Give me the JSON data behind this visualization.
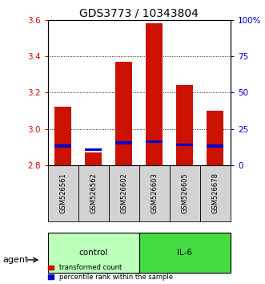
{
  "title": "GDS3773 / 10343804",
  "samples": [
    "GSM526561",
    "GSM526562",
    "GSM526602",
    "GSM526603",
    "GSM526605",
    "GSM526678"
  ],
  "red_tops": [
    3.12,
    2.87,
    3.37,
    3.58,
    3.24,
    3.1
  ],
  "blue_tops": [
    2.905,
    2.885,
    2.923,
    2.93,
    2.912,
    2.905
  ],
  "ymin": 2.8,
  "ymax": 3.6,
  "yticks": [
    2.8,
    3.0,
    3.2,
    3.4,
    3.6
  ],
  "right_yticks": [
    0,
    25,
    50,
    75,
    100
  ],
  "right_ylabels": [
    "0",
    "25",
    "50",
    "75",
    "100%"
  ],
  "bar_width": 0.55,
  "red_color": "#cc1100",
  "blue_color": "#0000cc",
  "control_samples": [
    0,
    1,
    2
  ],
  "il6_samples": [
    3,
    4,
    5
  ],
  "control_label": "control",
  "il6_label": "IL-6",
  "agent_label": "agent",
  "control_color": "#bbffbb",
  "il6_color": "#44dd44",
  "legend_red_label": "transformed count",
  "legend_blue_label": "percentile rank within the sample",
  "title_fontsize": 10,
  "tick_fontsize": 7.5,
  "sample_fontsize": 6,
  "agent_fontsize": 8,
  "legend_fontsize": 6,
  "red_tick_color": "#cc1100",
  "blue_tick_color": "#0000cc"
}
